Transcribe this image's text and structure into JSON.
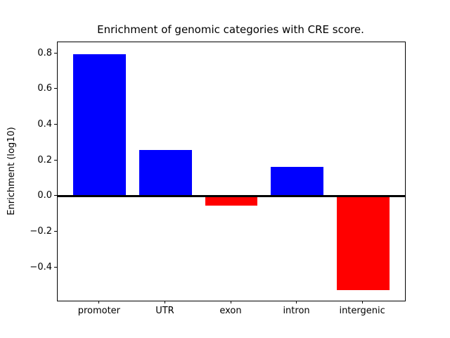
{
  "chart_data": {
    "type": "bar",
    "title": "Enrichment of genomic categories with CRE score.",
    "xlabel": "",
    "ylabel": "Enrichment (log10)",
    "categories": [
      "promoter",
      "UTR",
      "exon",
      "intron",
      "intergenic"
    ],
    "values": [
      0.797,
      0.261,
      -0.053,
      0.167,
      -0.525
    ],
    "positive_color": "#0000ff",
    "negative_color": "#ff0000",
    "bar_colors": [
      "#0000ff",
      "#0000ff",
      "#ff0000",
      "#0000ff",
      "#ff0000"
    ],
    "yticks": [
      0.8,
      0.6,
      0.4,
      0.2,
      0.0,
      -0.2,
      -0.4
    ],
    "ytick_labels": [
      "0.8",
      "0.6",
      "0.4",
      "0.2",
      "0.0",
      "−0.2",
      "−0.4"
    ],
    "ylim": [
      -0.585,
      0.864
    ],
    "xlim": [
      -0.64,
      4.64
    ],
    "bar_width_units": 0.8,
    "grid": false,
    "legend": null,
    "zero_line": true,
    "axis_color": "#000000",
    "background": "#ffffff"
  }
}
